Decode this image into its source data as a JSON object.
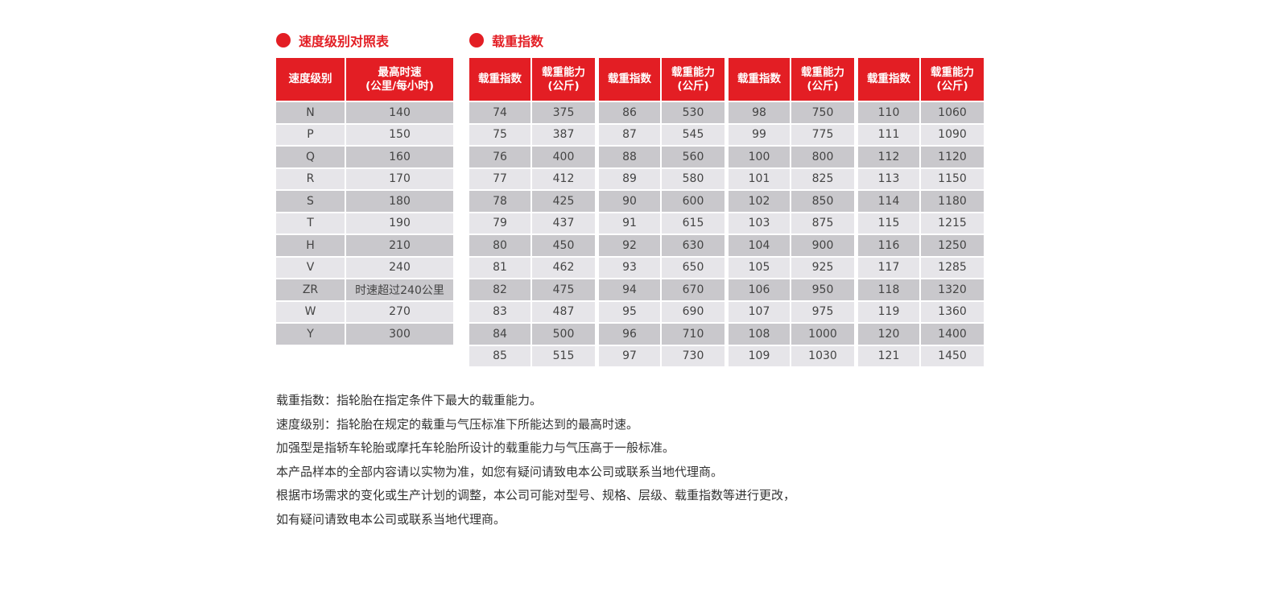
{
  "speed": {
    "title": "速度级别对照表",
    "headers": [
      "速度级别",
      "最高时速",
      "(公里/每小时)"
    ],
    "rows": [
      [
        "N",
        "140"
      ],
      [
        "P",
        "150"
      ],
      [
        "Q",
        "160"
      ],
      [
        "R",
        "170"
      ],
      [
        "S",
        "180"
      ],
      [
        "T",
        "190"
      ],
      [
        "H",
        "210"
      ],
      [
        "V",
        "240"
      ],
      [
        "ZR",
        "时速超过240公里"
      ],
      [
        "W",
        "270"
      ],
      [
        "Y",
        "300"
      ]
    ]
  },
  "load": {
    "title": "载重指数",
    "h1": "载重指数",
    "h2a": "载重能力",
    "h2b": "(公斤)",
    "tables": [
      [
        [
          "74",
          "375"
        ],
        [
          "75",
          "387"
        ],
        [
          "76",
          "400"
        ],
        [
          "77",
          "412"
        ],
        [
          "78",
          "425"
        ],
        [
          "79",
          "437"
        ],
        [
          "80",
          "450"
        ],
        [
          "81",
          "462"
        ],
        [
          "82",
          "475"
        ],
        [
          "83",
          "487"
        ],
        [
          "84",
          "500"
        ],
        [
          "85",
          "515"
        ]
      ],
      [
        [
          "86",
          "530"
        ],
        [
          "87",
          "545"
        ],
        [
          "88",
          "560"
        ],
        [
          "89",
          "580"
        ],
        [
          "90",
          "600"
        ],
        [
          "91",
          "615"
        ],
        [
          "92",
          "630"
        ],
        [
          "93",
          "650"
        ],
        [
          "94",
          "670"
        ],
        [
          "95",
          "690"
        ],
        [
          "96",
          "710"
        ],
        [
          "97",
          "730"
        ]
      ],
      [
        [
          "98",
          "750"
        ],
        [
          "99",
          "775"
        ],
        [
          "100",
          "800"
        ],
        [
          "101",
          "825"
        ],
        [
          "102",
          "850"
        ],
        [
          "103",
          "875"
        ],
        [
          "104",
          "900"
        ],
        [
          "105",
          "925"
        ],
        [
          "106",
          "950"
        ],
        [
          "107",
          "975"
        ],
        [
          "108",
          "1000"
        ],
        [
          "109",
          "1030"
        ]
      ],
      [
        [
          "110",
          "1060"
        ],
        [
          "111",
          "1090"
        ],
        [
          "112",
          "1120"
        ],
        [
          "113",
          "1150"
        ],
        [
          "114",
          "1180"
        ],
        [
          "115",
          "1215"
        ],
        [
          "116",
          "1250"
        ],
        [
          "117",
          "1285"
        ],
        [
          "118",
          "1320"
        ],
        [
          "119",
          "1360"
        ],
        [
          "120",
          "1400"
        ],
        [
          "121",
          "1450"
        ]
      ]
    ]
  },
  "notes": [
    "载重指数：指轮胎在指定条件下最大的载重能力。",
    "速度级别：指轮胎在规定的载重与气压标准下所能达到的最高时速。",
    "加强型是指轿车轮胎或摩托车轮胎所设计的载重能力与气压高于一般标准。",
    "本产品样本的全部内容请以实物为准，如您有疑问请致电本公司或联系当地代理商。",
    "根据市场需求的变化或生产计划的调整，本公司可能对型号、规格、层级、载重指数等进行更改，",
    "如有疑问请致电本公司或联系当地代理商。"
  ],
  "colors": {
    "accent": "#e31e24",
    "row_dark": "#c9c8cc",
    "row_light": "#e6e5e9"
  }
}
